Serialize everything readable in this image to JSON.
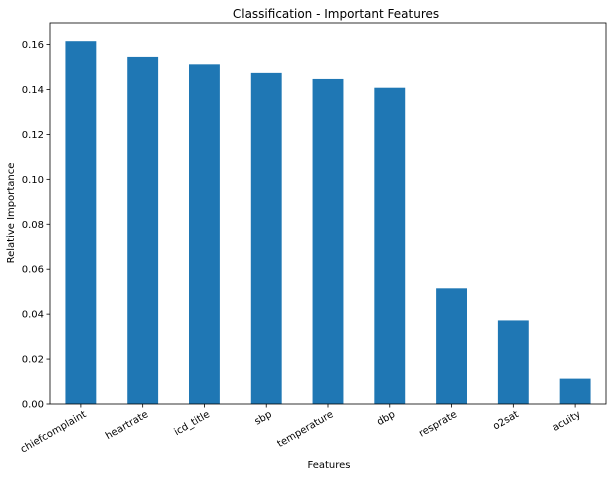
{
  "chart_data": {
    "type": "bar",
    "title": "Classification - Important Features",
    "xlabel": "Features",
    "ylabel": "Relative Importance",
    "categories": [
      "chiefcomplaint",
      "heartrate",
      "icd_title",
      "sbp",
      "temperature",
      "dbp",
      "resprate",
      "o2sat",
      "acuity"
    ],
    "values": [
      0.1615,
      0.1545,
      0.1512,
      0.1474,
      0.1447,
      0.1408,
      0.0515,
      0.0372,
      0.0113
    ],
    "yticks": [
      0.0,
      0.02,
      0.04,
      0.06,
      0.08,
      0.1,
      0.12,
      0.14,
      0.16
    ],
    "ytick_labels": [
      "0.00",
      "0.02",
      "0.04",
      "0.06",
      "0.08",
      "0.10",
      "0.12",
      "0.14",
      "0.16"
    ],
    "ylim": [
      0,
      0.1696
    ],
    "grid": false,
    "bar_color": "#1f77b4"
  }
}
